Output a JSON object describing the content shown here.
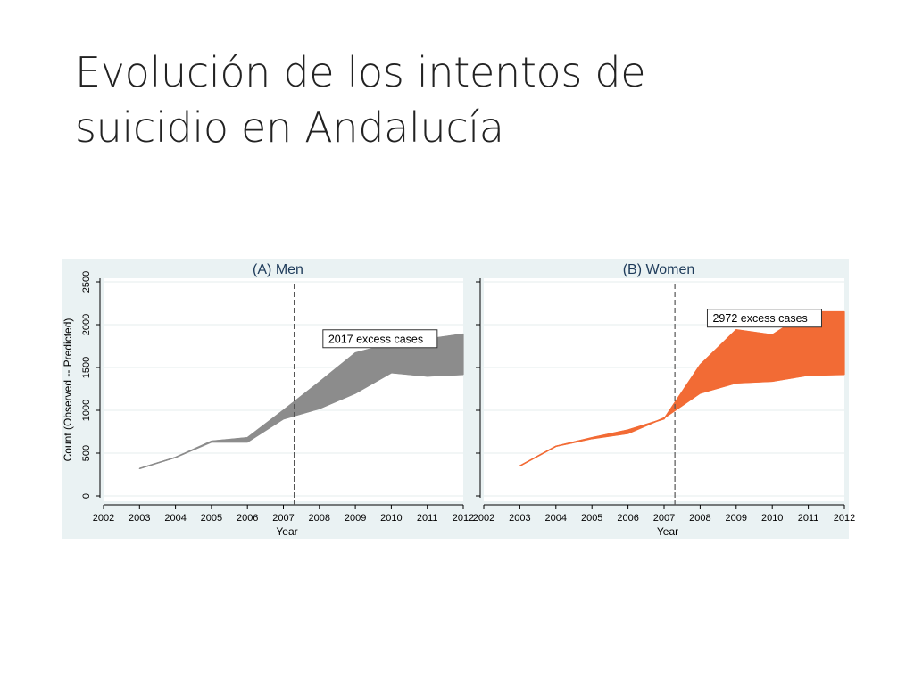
{
  "slide": {
    "title_line1": "Evolución de los intentos de",
    "title_line2": "suicidio en Andalucía"
  },
  "chart_data": [
    {
      "type": "area",
      "title": "(A)  Men",
      "xlabel": "Year",
      "ylabel": "Count (Observed -- Predicted)",
      "x_ticks": [
        2002,
        2003,
        2004,
        2005,
        2006,
        2007,
        2008,
        2009,
        2010,
        2011,
        2012
      ],
      "y_ticks": [
        0,
        500,
        1000,
        1500,
        2000,
        2500
      ],
      "xlim": [
        2002,
        2012
      ],
      "ylim": [
        0,
        2500
      ],
      "grid": true,
      "color": "#8c8c8c",
      "vline": 2007.3,
      "annotation": "2017 excess cases",
      "x": [
        2003,
        2004,
        2005,
        2006,
        2007,
        2008,
        2009,
        2010,
        2011,
        2012
      ],
      "series": [
        {
          "values": [
            320,
            450,
            640,
            680,
            1000,
            1330,
            1670,
            1780,
            1830,
            1890
          ]
        },
        {
          "values": [
            320,
            450,
            630,
            630,
            900,
            1020,
            1200,
            1440,
            1400,
            1420
          ]
        }
      ]
    },
    {
      "type": "area",
      "title": "(B) Women",
      "xlabel": "Year",
      "ylabel": "",
      "x_ticks": [
        2002,
        2003,
        2004,
        2005,
        2006,
        2007,
        2008,
        2009,
        2010,
        2011,
        2012
      ],
      "y_ticks": [
        0,
        500,
        1000,
        1500,
        2000,
        2500
      ],
      "xlim": [
        2002,
        2012
      ],
      "ylim": [
        0,
        2500
      ],
      "grid": true,
      "color": "#f26b35",
      "vline": 2007.3,
      "annotation": "2972 excess cases",
      "x": [
        2003,
        2004,
        2005,
        2006,
        2007,
        2008,
        2009,
        2010,
        2011,
        2012
      ],
      "series": [
        {
          "values": [
            350,
            580,
            680,
            770,
            900,
            1530,
            1940,
            1880,
            2150,
            2150
          ]
        },
        {
          "values": [
            350,
            580,
            670,
            730,
            910,
            1200,
            1320,
            1340,
            1410,
            1420
          ]
        }
      ]
    }
  ]
}
